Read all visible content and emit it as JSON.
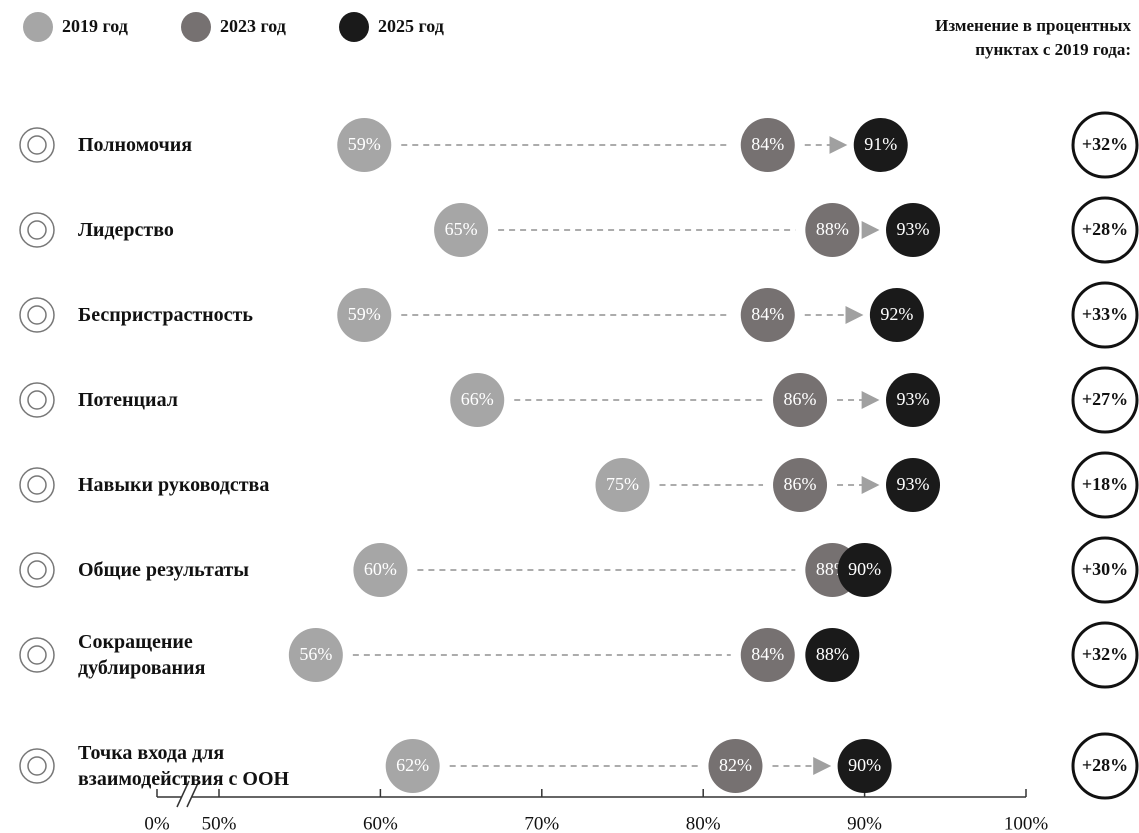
{
  "chart_data": {
    "type": "dot",
    "categories": [
      "Полномочия",
      "Лидерство",
      "Беспристрастность",
      "Потенциал",
      "Навыки руководства",
      "Общие результаты",
      "Сокращение дублирования",
      "Точка входа для взаимодействия с ООН"
    ],
    "series": [
      {
        "name": "2019 год",
        "color": "#a6a6a6",
        "values": [
          59,
          65,
          59,
          66,
          75,
          60,
          56,
          62
        ],
        "value_labels": [
          "59%",
          "65%",
          "59%",
          "66%",
          "75%",
          "60%",
          "56%",
          "62%"
        ]
      },
      {
        "name": "2023 год",
        "color": "#767171",
        "values": [
          84,
          88,
          84,
          86,
          86,
          88,
          84,
          82
        ],
        "value_labels": [
          "84%",
          "88%",
          "84%",
          "86%",
          "86%",
          "88%",
          "84%",
          "82%"
        ]
      },
      {
        "name": "2025 год",
        "color": "#1a1a1a",
        "values": [
          91,
          93,
          92,
          93,
          93,
          90,
          88,
          90
        ],
        "value_labels": [
          "91%",
          "93%",
          "92%",
          "93%",
          "93%",
          "90%",
          "88%",
          "90%"
        ]
      }
    ],
    "change": {
      "title": "Изменение в процентных\nпунктах  с 2019 года:",
      "values": [
        32,
        28,
        33,
        27,
        18,
        30,
        32,
        28
      ],
      "value_labels": [
        "+32%",
        "+28%",
        "+33%",
        "+27%",
        "+18%",
        "+30%",
        "+32%",
        "+28%"
      ]
    },
    "xlim": [
      50,
      100
    ],
    "axis_break": true,
    "xticks": [
      {
        "value": 0,
        "label": "0%"
      },
      {
        "value": 50,
        "label": "50%"
      },
      {
        "value": 60,
        "label": "60%"
      },
      {
        "value": 70,
        "label": "70%"
      },
      {
        "value": 80,
        "label": "80%"
      },
      {
        "value": 90,
        "label": "90%"
      },
      {
        "value": 100,
        "label": "100%"
      }
    ]
  }
}
